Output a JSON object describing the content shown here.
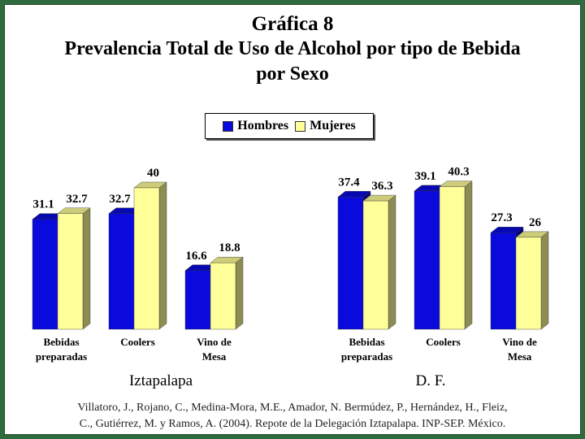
{
  "title_line1": "Gráfica 8",
  "title_line2": "Prevalencia Total de Uso de Alcohol por tipo de Bebida",
  "title_line3": "por Sexo",
  "legend": {
    "hombres": "Hombres",
    "mujeres": "Mujeres"
  },
  "colors": {
    "hombres": "#0a0adc",
    "mujeres": "#ffff99",
    "frame": "#2f6b3c"
  },
  "citation_line1": "Villatoro, J., Rojano, C., Medina-Mora, M.E., Amador, N. Bermúdez, P., Hernández, H., Fleiz,",
  "citation_line2": "C., Gutiérrez, M. y Ramos, A. (2004). Repote de la Delegación Iztapalapa. INP-SEP. México.",
  "chart_data": [
    {
      "type": "bar",
      "group_label": "Iztapalapa",
      "categories": [
        "Bebidas preparadas",
        "Coolers",
        "Vino de Mesa"
      ],
      "category_lines": [
        [
          "Bebidas",
          "preparadas"
        ],
        [
          "Coolers"
        ],
        [
          "Vino de",
          "Mesa"
        ]
      ],
      "series": [
        {
          "name": "Hombres",
          "values": [
            31.1,
            32.7,
            16.6
          ],
          "labels": [
            "31.1",
            "32.7",
            "16.6"
          ]
        },
        {
          "name": "Mujeres",
          "values": [
            32.7,
            40,
            18.8
          ],
          "labels": [
            "32.7",
            "40",
            "18.8"
          ]
        }
      ]
    },
    {
      "type": "bar",
      "group_label": "D. F.",
      "categories": [
        "Bebidas preparadas",
        "Coolers",
        "Vino de Mesa"
      ],
      "category_lines": [
        [
          "Bebidas",
          "preparadas"
        ],
        [
          "Coolers"
        ],
        [
          "Vino de",
          "Mesa"
        ]
      ],
      "series": [
        {
          "name": "Hombres",
          "values": [
            37.4,
            39.1,
            27.3
          ],
          "labels": [
            "37.4",
            "39.1",
            "27.3"
          ]
        },
        {
          "name": "Mujeres",
          "values": [
            36.3,
            40.3,
            26
          ],
          "labels": [
            "36.3",
            "40.3",
            "26"
          ]
        }
      ]
    }
  ]
}
